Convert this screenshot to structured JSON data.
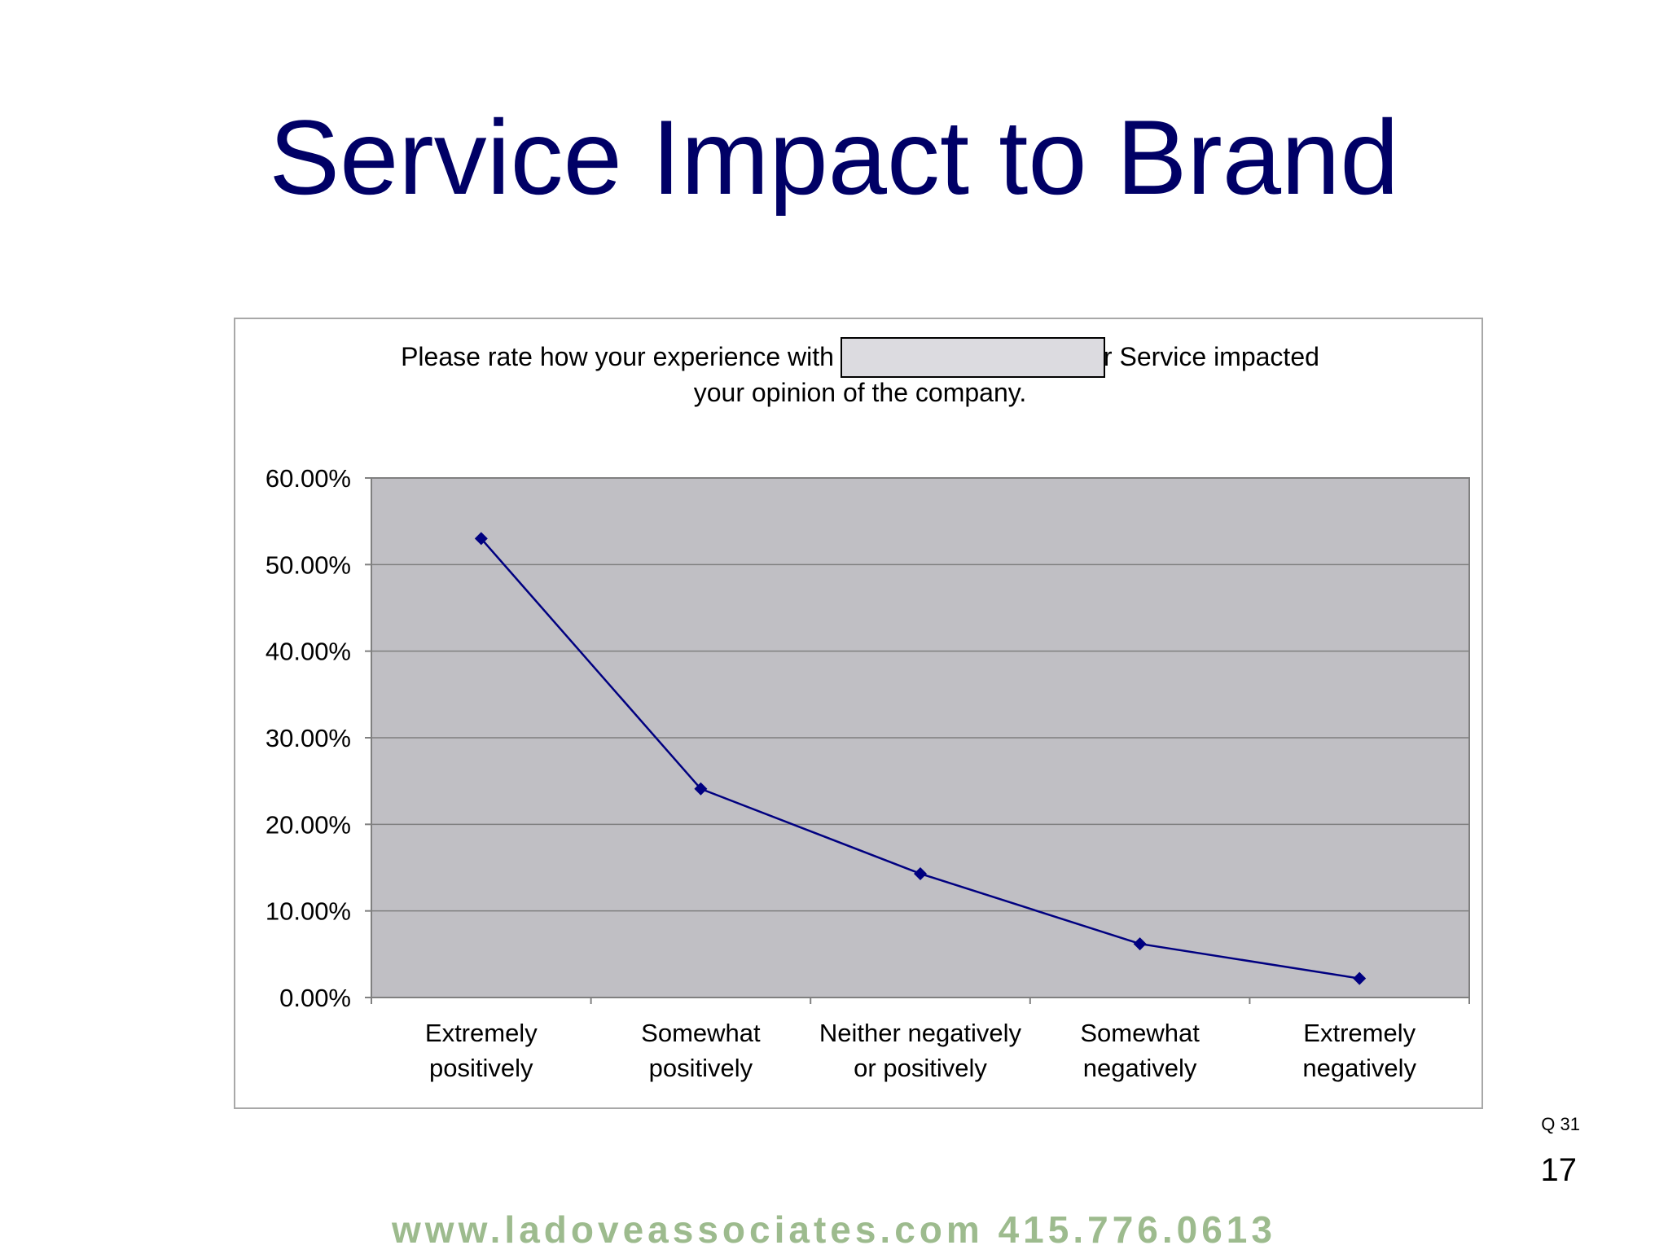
{
  "slide": {
    "title": "Service Impact to Brand",
    "question_ref": "Q 31",
    "page_number": "17",
    "footer": "www.ladoveassociates.com   415.776.0613"
  },
  "colors": {
    "title": "#000066",
    "plot_background": "#c0bfc4",
    "series_line": "#000080",
    "gridline": "#7f7f7f",
    "footer": "#9dbb8e",
    "redaction_fill": "#dcdbe0"
  },
  "chart_data": {
    "type": "line",
    "title_line1_left": "Please rate how your experience with",
    "title_line1_right": "r Service impacted",
    "title_line2": "your opinion of the company.",
    "categories": [
      [
        "Extremely",
        "positively"
      ],
      [
        "Somewhat",
        "positively"
      ],
      [
        "Neither negatively",
        "or positively"
      ],
      [
        "Somewhat",
        "negatively"
      ],
      [
        "Extremely",
        "negatively"
      ]
    ],
    "series": [
      {
        "values": [
          53.0,
          24.1,
          14.3,
          6.2,
          2.2
        ]
      }
    ],
    "y_ticks": [
      "0.00%",
      "10.00%",
      "20.00%",
      "30.00%",
      "40.00%",
      "50.00%",
      "60.00%"
    ],
    "ylim": [
      0,
      60
    ],
    "y_step": 10,
    "grid": true,
    "legend": "none",
    "marker": "diamond"
  }
}
